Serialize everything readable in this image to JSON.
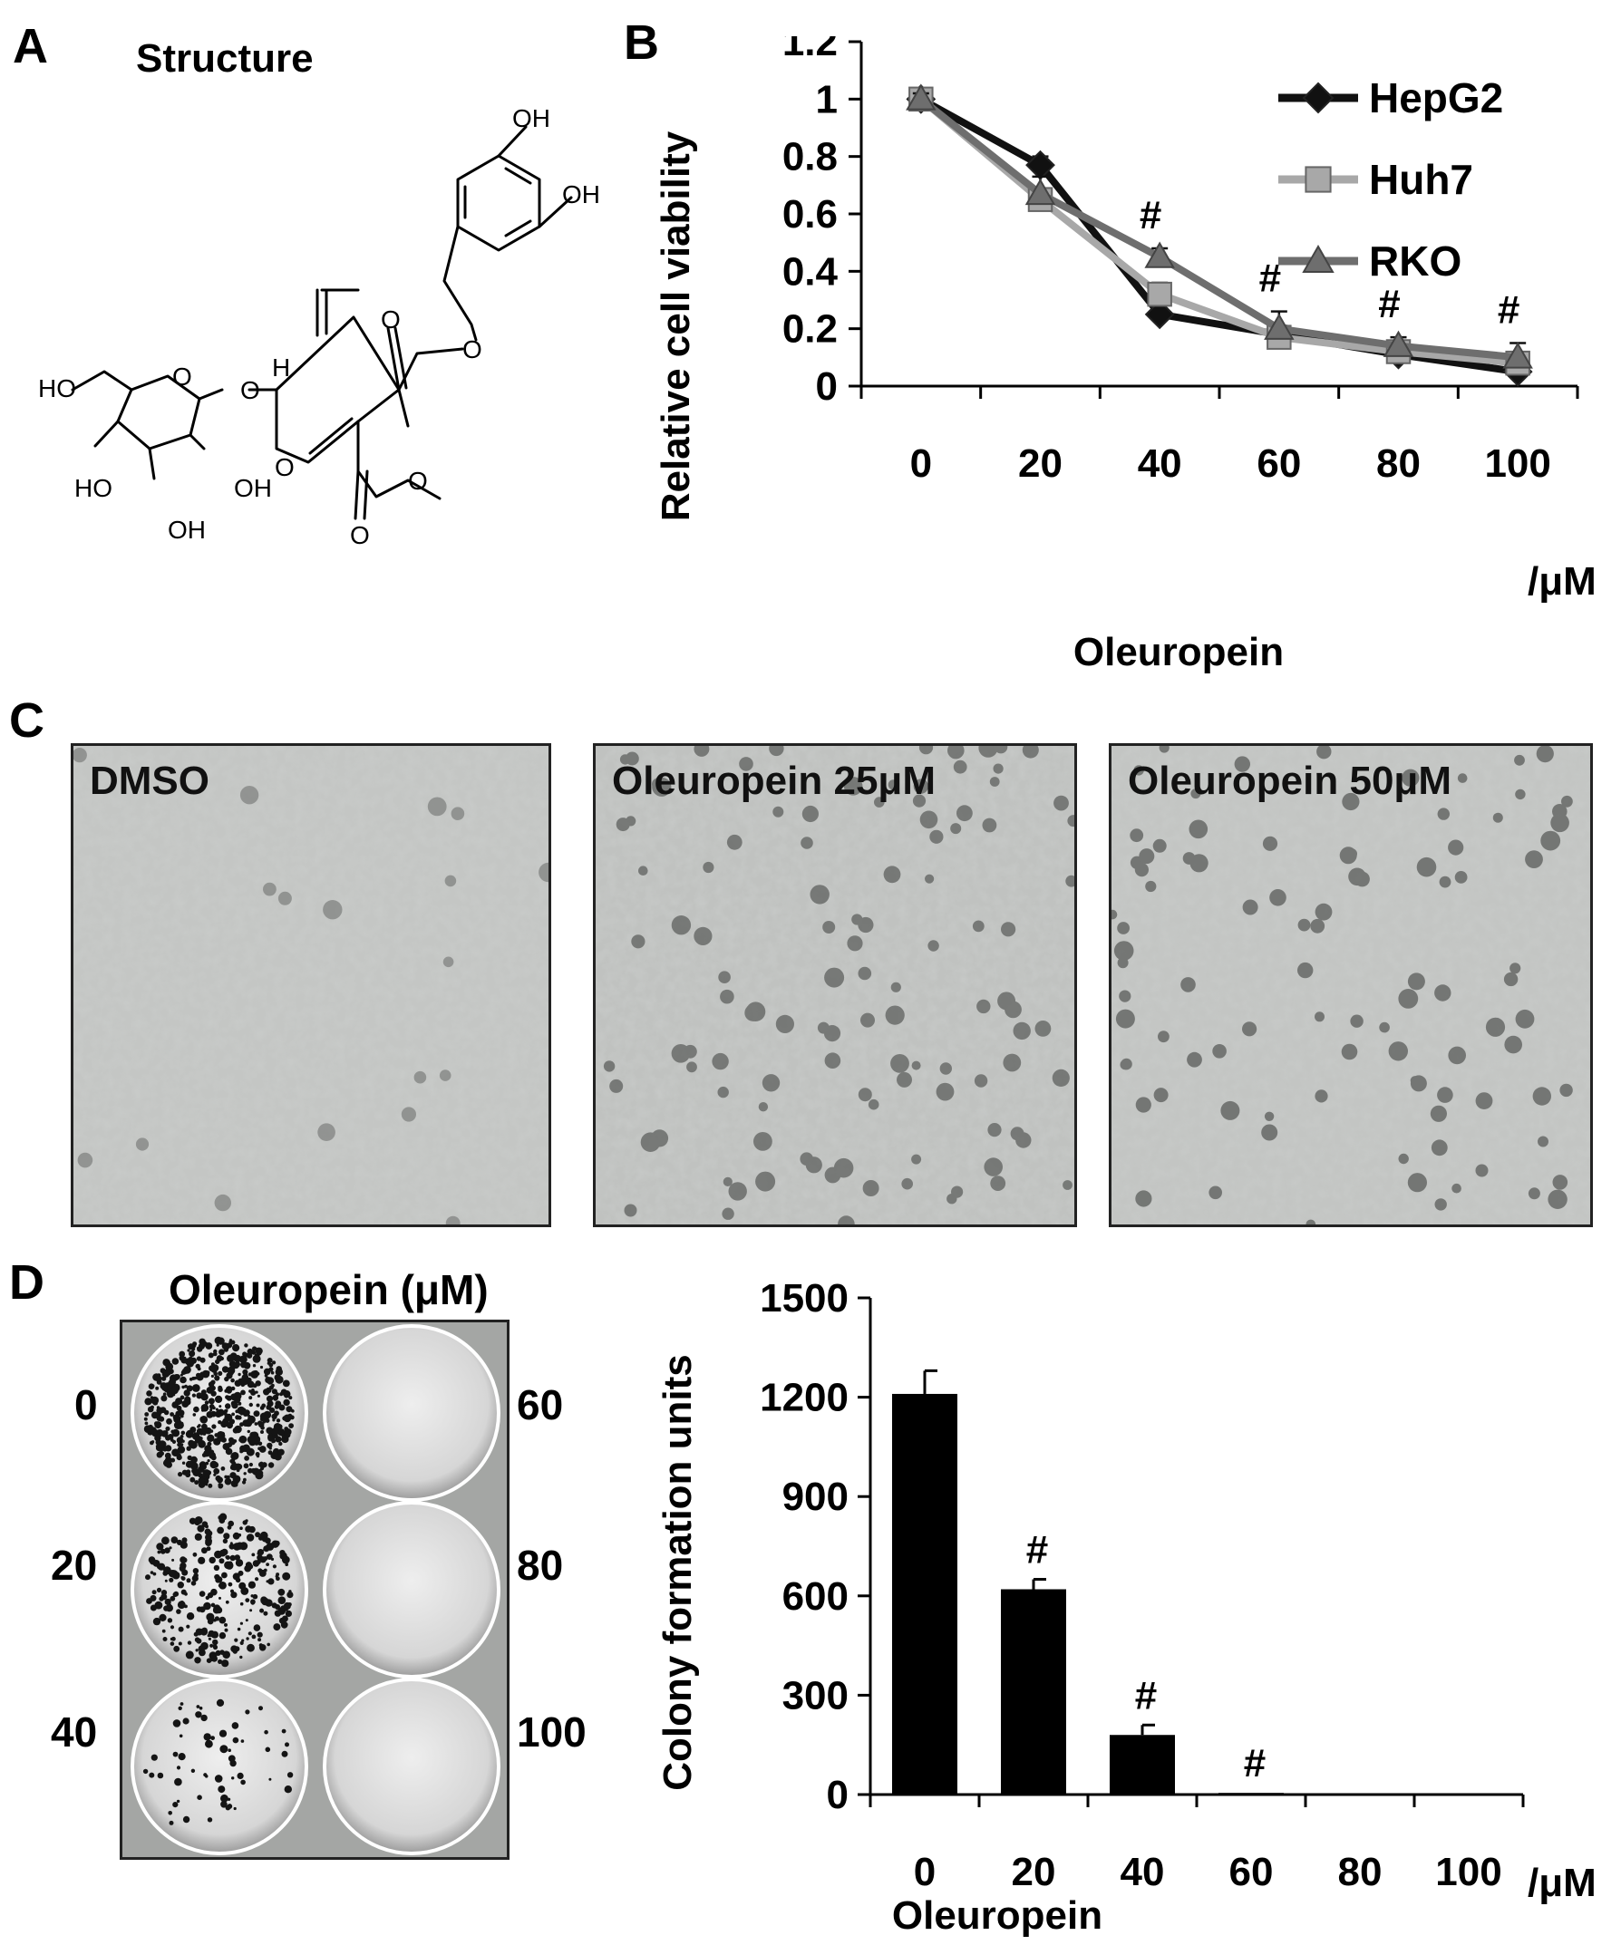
{
  "panels": {
    "a": {
      "letter": "A",
      "title": "Structure",
      "atoms": {
        "oh_top": "OH",
        "oh_right": "OH",
        "ho_left": "HO",
        "ho_bottom_left": "HO",
        "oh_inner": "OH",
        "oh_bottom": "OH",
        "o_ring1": "O",
        "o_link": "O",
        "o_ring2": "O",
        "o_ester1": "O",
        "o_ester2": "O",
        "o_ester3": "O",
        "o_ester4": "O",
        "h_stereo": "H"
      }
    },
    "b": {
      "letter": "B"
    },
    "c": {
      "letter": "C",
      "images": [
        {
          "label": "DMSO"
        },
        {
          "label": "Oleuropein 25μM"
        },
        {
          "label": "Oleuropein 50μM"
        }
      ]
    },
    "d": {
      "letter": "D",
      "plate_title": "Oleuropein (μM)",
      "plate_left_labels": [
        "0",
        "20",
        "40"
      ],
      "plate_right_labels": [
        "60",
        "80",
        "100"
      ]
    }
  },
  "chart_data": [
    {
      "type": "line",
      "x": [
        0,
        20,
        40,
        60,
        80,
        100
      ],
      "x_tick_labels": [
        "0",
        "20",
        "40",
        "60",
        "80",
        "100"
      ],
      "x_unit": "/μM",
      "xlabel": "Oleuropein",
      "ylabel": "Relative cell viability",
      "ylim": [
        0,
        1.2
      ],
      "y_ticks": [
        "0",
        "0.2",
        "0.4",
        "0.6",
        "0.8",
        "1",
        "1.2"
      ],
      "legend_position": "top-right",
      "series": [
        {
          "name": "HepG2",
          "values": [
            1.0,
            0.77,
            0.25,
            0.18,
            0.11,
            0.05
          ],
          "errors": [
            0.02,
            0.03,
            0.02,
            0.03,
            0.02,
            0.02
          ],
          "color": "#111111",
          "marker": "diamond"
        },
        {
          "name": "Huh7",
          "values": [
            1.0,
            0.65,
            0.32,
            0.17,
            0.12,
            0.08
          ],
          "errors": [
            0.02,
            0.03,
            0.04,
            0.03,
            0.03,
            0.03
          ],
          "color": "#a8a8a8",
          "marker": "square"
        },
        {
          "name": "RKO",
          "values": [
            1.0,
            0.67,
            0.45,
            0.2,
            0.14,
            0.1
          ],
          "errors": [
            0.02,
            0.06,
            0.03,
            0.06,
            0.03,
            0.05
          ],
          "color": "#6e6e6e",
          "marker": "triangle"
        }
      ],
      "annotations": [
        {
          "x": 40,
          "text": "#"
        },
        {
          "x": 60,
          "text": "#"
        },
        {
          "x": 80,
          "text": "#"
        },
        {
          "x": 100,
          "text": "#"
        }
      ]
    },
    {
      "type": "bar",
      "categories": [
        "0",
        "20",
        "40",
        "60",
        "80",
        "100"
      ],
      "values": [
        1210,
        620,
        180,
        5,
        0,
        0
      ],
      "errors": [
        70,
        30,
        30,
        0,
        0,
        0
      ],
      "x_unit": "/μM",
      "xlabel": "Oleuropein",
      "ylabel": "Colony formation units",
      "ylim": [
        0,
        1500
      ],
      "y_ticks": [
        "0",
        "300",
        "600",
        "900",
        "1200",
        "1500"
      ],
      "bar_color": "#000000",
      "annotations": [
        {
          "category": "20",
          "text": "#"
        },
        {
          "category": "40",
          "text": "#"
        },
        {
          "category": "60",
          "text": "#"
        }
      ]
    }
  ]
}
